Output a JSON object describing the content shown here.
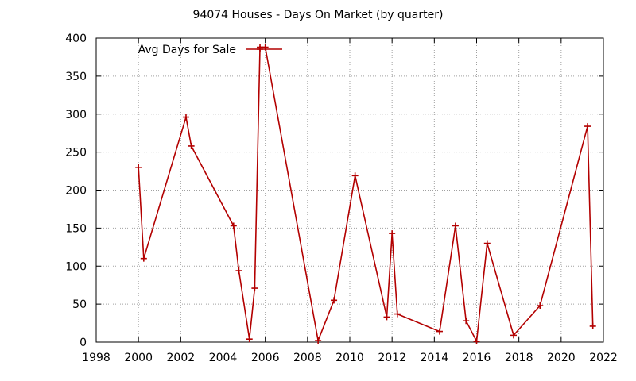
{
  "chart_data": {
    "type": "line",
    "title": "94074 Houses - Days On Market (by quarter)",
    "xlabel": "",
    "ylabel": "",
    "xlim": [
      1998,
      2022
    ],
    "ylim": [
      0,
      400
    ],
    "x_ticks": [
      1998,
      2000,
      2002,
      2004,
      2006,
      2008,
      2010,
      2012,
      2014,
      2016,
      2018,
      2020,
      2022
    ],
    "x_tick_labels": [
      "1998",
      "2000",
      "2002",
      "2004",
      "2006",
      "2008",
      "2010",
      "2012",
      "2014",
      "2016",
      "2018",
      "2020",
      "2022"
    ],
    "y_ticks": [
      0,
      50,
      100,
      150,
      200,
      250,
      300,
      350,
      400
    ],
    "y_tick_labels": [
      "0",
      "50",
      "100",
      "150",
      "200",
      "250",
      "300",
      "350",
      "400"
    ],
    "grid": true,
    "legend_position": "top-left",
    "series": [
      {
        "name": "Avg Days for Sale",
        "color": "#b30000",
        "marker": "plus",
        "points": [
          {
            "x": 2000.0,
            "y": 230
          },
          {
            "x": 2000.25,
            "y": 110
          },
          {
            "x": 2002.25,
            "y": 296
          },
          {
            "x": 2002.5,
            "y": 258
          },
          {
            "x": 2004.5,
            "y": 153
          },
          {
            "x": 2004.75,
            "y": 94
          },
          {
            "x": 2005.25,
            "y": 4
          },
          {
            "x": 2005.5,
            "y": 71
          },
          {
            "x": 2005.75,
            "y": 388
          },
          {
            "x": 2006.0,
            "y": 388
          },
          {
            "x": 2008.5,
            "y": 2
          },
          {
            "x": 2009.25,
            "y": 55
          },
          {
            "x": 2010.25,
            "y": 219
          },
          {
            "x": 2011.75,
            "y": 33
          },
          {
            "x": 2012.0,
            "y": 143
          },
          {
            "x": 2012.25,
            "y": 37
          },
          {
            "x": 2014.25,
            "y": 14
          },
          {
            "x": 2015.0,
            "y": 153
          },
          {
            "x": 2015.5,
            "y": 28
          },
          {
            "x": 2016.0,
            "y": 1
          },
          {
            "x": 2016.5,
            "y": 130
          },
          {
            "x": 2017.75,
            "y": 9
          },
          {
            "x": 2019.0,
            "y": 48
          },
          {
            "x": 2021.25,
            "y": 284
          },
          {
            "x": 2021.5,
            "y": 21
          }
        ]
      }
    ]
  }
}
